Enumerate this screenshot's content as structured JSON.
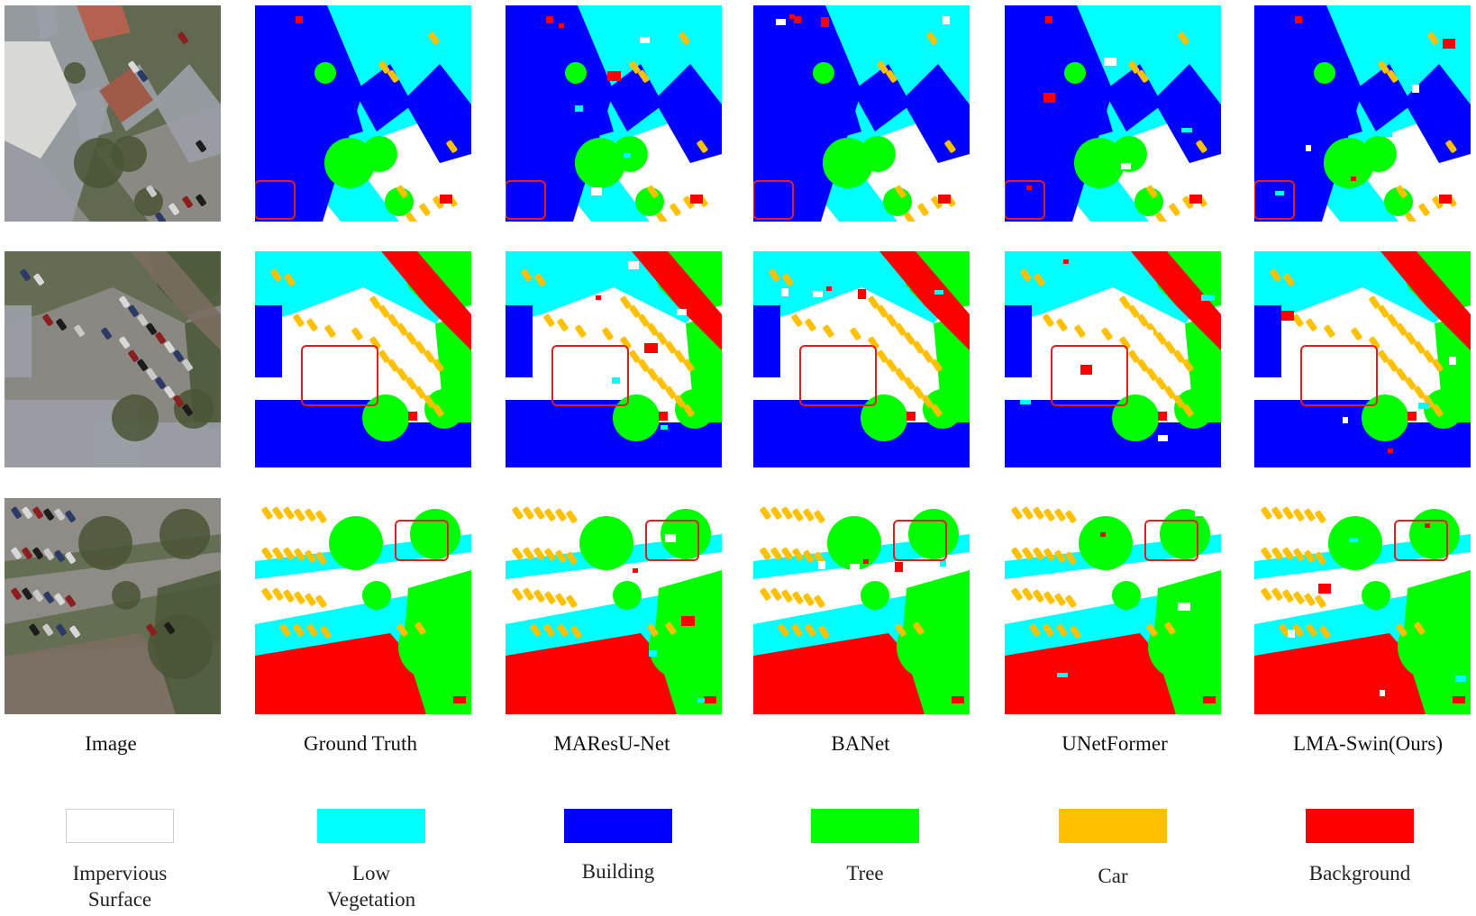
{
  "columns": [
    {
      "label": "Image"
    },
    {
      "label": "Ground Truth"
    },
    {
      "label": "MAResU-Net"
    },
    {
      "label": "BANet"
    },
    {
      "label": "UNetFormer"
    },
    {
      "label": "LMA-Swin(Ours)"
    }
  ],
  "legend": [
    {
      "line1": "Impervious",
      "line2": "Surface",
      "color": "#ffffff"
    },
    {
      "line1": "Low",
      "line2": "Vegetation",
      "color": "#00ffff"
    },
    {
      "line1": "Building",
      "line2": "",
      "color": "#0000ff"
    },
    {
      "line1": "Tree",
      "line2": "",
      "color": "#00ff00"
    },
    {
      "line1": "Car",
      "line2": "",
      "color": "#ffc000"
    },
    {
      "line1": "Background",
      "line2": "",
      "color": "#ff0000"
    }
  ],
  "highlight_color": "#e0201f",
  "rows": 3
}
